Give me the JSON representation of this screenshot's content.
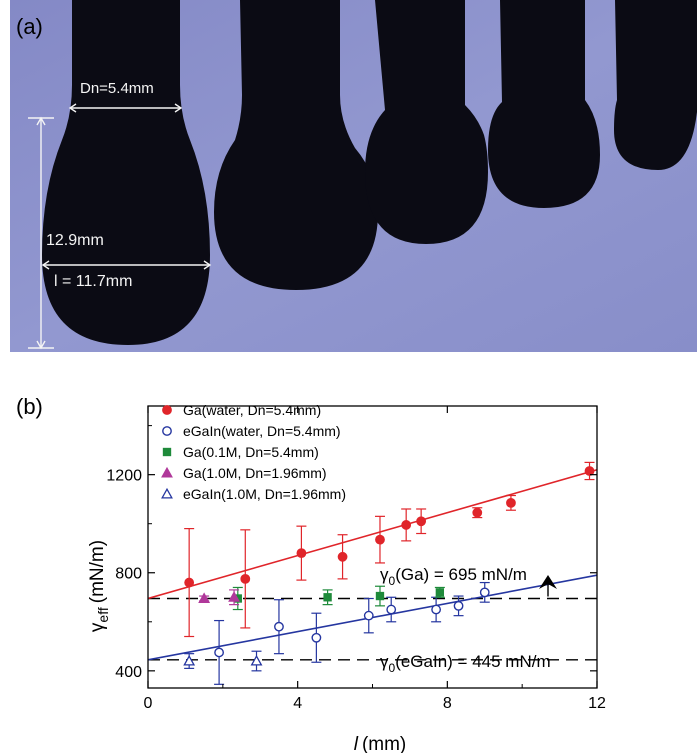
{
  "panel_a": {
    "label": "(a)",
    "nozzle_label": "Dn=5.4mm",
    "height_label": "12.9mm",
    "width_label": "l = 11.7mm",
    "colors": {
      "background": "#8d93cd",
      "droplet": "#0b0b14",
      "annotation": "#f4f4f4"
    }
  },
  "chart_data": {
    "type": "scatter",
    "panel_label": "(b)",
    "xlabel_symbol": "l",
    "xlabel_unit": "(mm)",
    "ylabel_symbol": "γ",
    "ylabel_sub": "eff",
    "ylabel_unit": "(mN/m)",
    "xlim": [
      0,
      12
    ],
    "ylim": [
      330,
      1480
    ],
    "xticks": [
      0,
      4,
      8,
      12
    ],
    "yticks": [
      400,
      800,
      1200
    ],
    "grid": false,
    "legend_position": "top-left",
    "series": [
      {
        "name": "Ga(water, Dn=5.4mm)",
        "marker": "circle-filled",
        "color": "#e0252a",
        "x": [
          1.1,
          2.6,
          4.1,
          5.2,
          6.2,
          6.9,
          7.3,
          8.8,
          9.7,
          11.8
        ],
        "y": [
          760,
          775,
          880,
          865,
          935,
          995,
          1010,
          1045,
          1085,
          1215
        ],
        "err": [
          220,
          200,
          110,
          90,
          95,
          65,
          50,
          20,
          30,
          35
        ]
      },
      {
        "name": "eGaIn(water, Dn=5.4mm)",
        "marker": "circle-open",
        "color": "#2536a0",
        "x": [
          1.9,
          3.5,
          4.5,
          5.9,
          6.5,
          7.7,
          8.3,
          9.0
        ],
        "y": [
          475,
          580,
          535,
          625,
          650,
          650,
          665,
          720
        ],
        "err": [
          130,
          110,
          100,
          70,
          50,
          50,
          40,
          40
        ]
      },
      {
        "name": "Ga(0.1M, Dn=5.4mm)",
        "marker": "square-filled",
        "color": "#1e8a3a",
        "x": [
          2.4,
          4.8,
          6.2,
          7.8
        ],
        "y": [
          695,
          700,
          705,
          720
        ],
        "err": [
          45,
          30,
          40,
          20
        ]
      },
      {
        "name": "Ga(1.0M, Dn=1.96mm)",
        "marker": "triangle-filled",
        "color": "#b0389a",
        "x": [
          1.5,
          2.3
        ],
        "y": [
          695,
          700
        ],
        "err": [
          10,
          30
        ]
      },
      {
        "name": "eGaIn(1.0M, Dn=1.96mm)",
        "marker": "triangle-open",
        "color": "#2536a0",
        "x": [
          1.1,
          2.9
        ],
        "y": [
          440,
          440
        ],
        "err": [
          30,
          40
        ]
      }
    ],
    "fit_lines": [
      {
        "color": "#e0252a",
        "x": [
          0,
          12
        ],
        "y": [
          695,
          1220
        ]
      },
      {
        "color": "#2536a0",
        "x": [
          0,
          12
        ],
        "y": [
          445,
          790
        ]
      }
    ],
    "reference_lines": [
      {
        "y": 695,
        "label_gamma": "γ",
        "label_sub": "0",
        "label_rest": "(Ga) = 695 mN/m"
      },
      {
        "y": 445,
        "label_gamma": "γ",
        "label_sub": "0",
        "label_rest": "(eGaIn) = 445 mN/m"
      }
    ]
  }
}
